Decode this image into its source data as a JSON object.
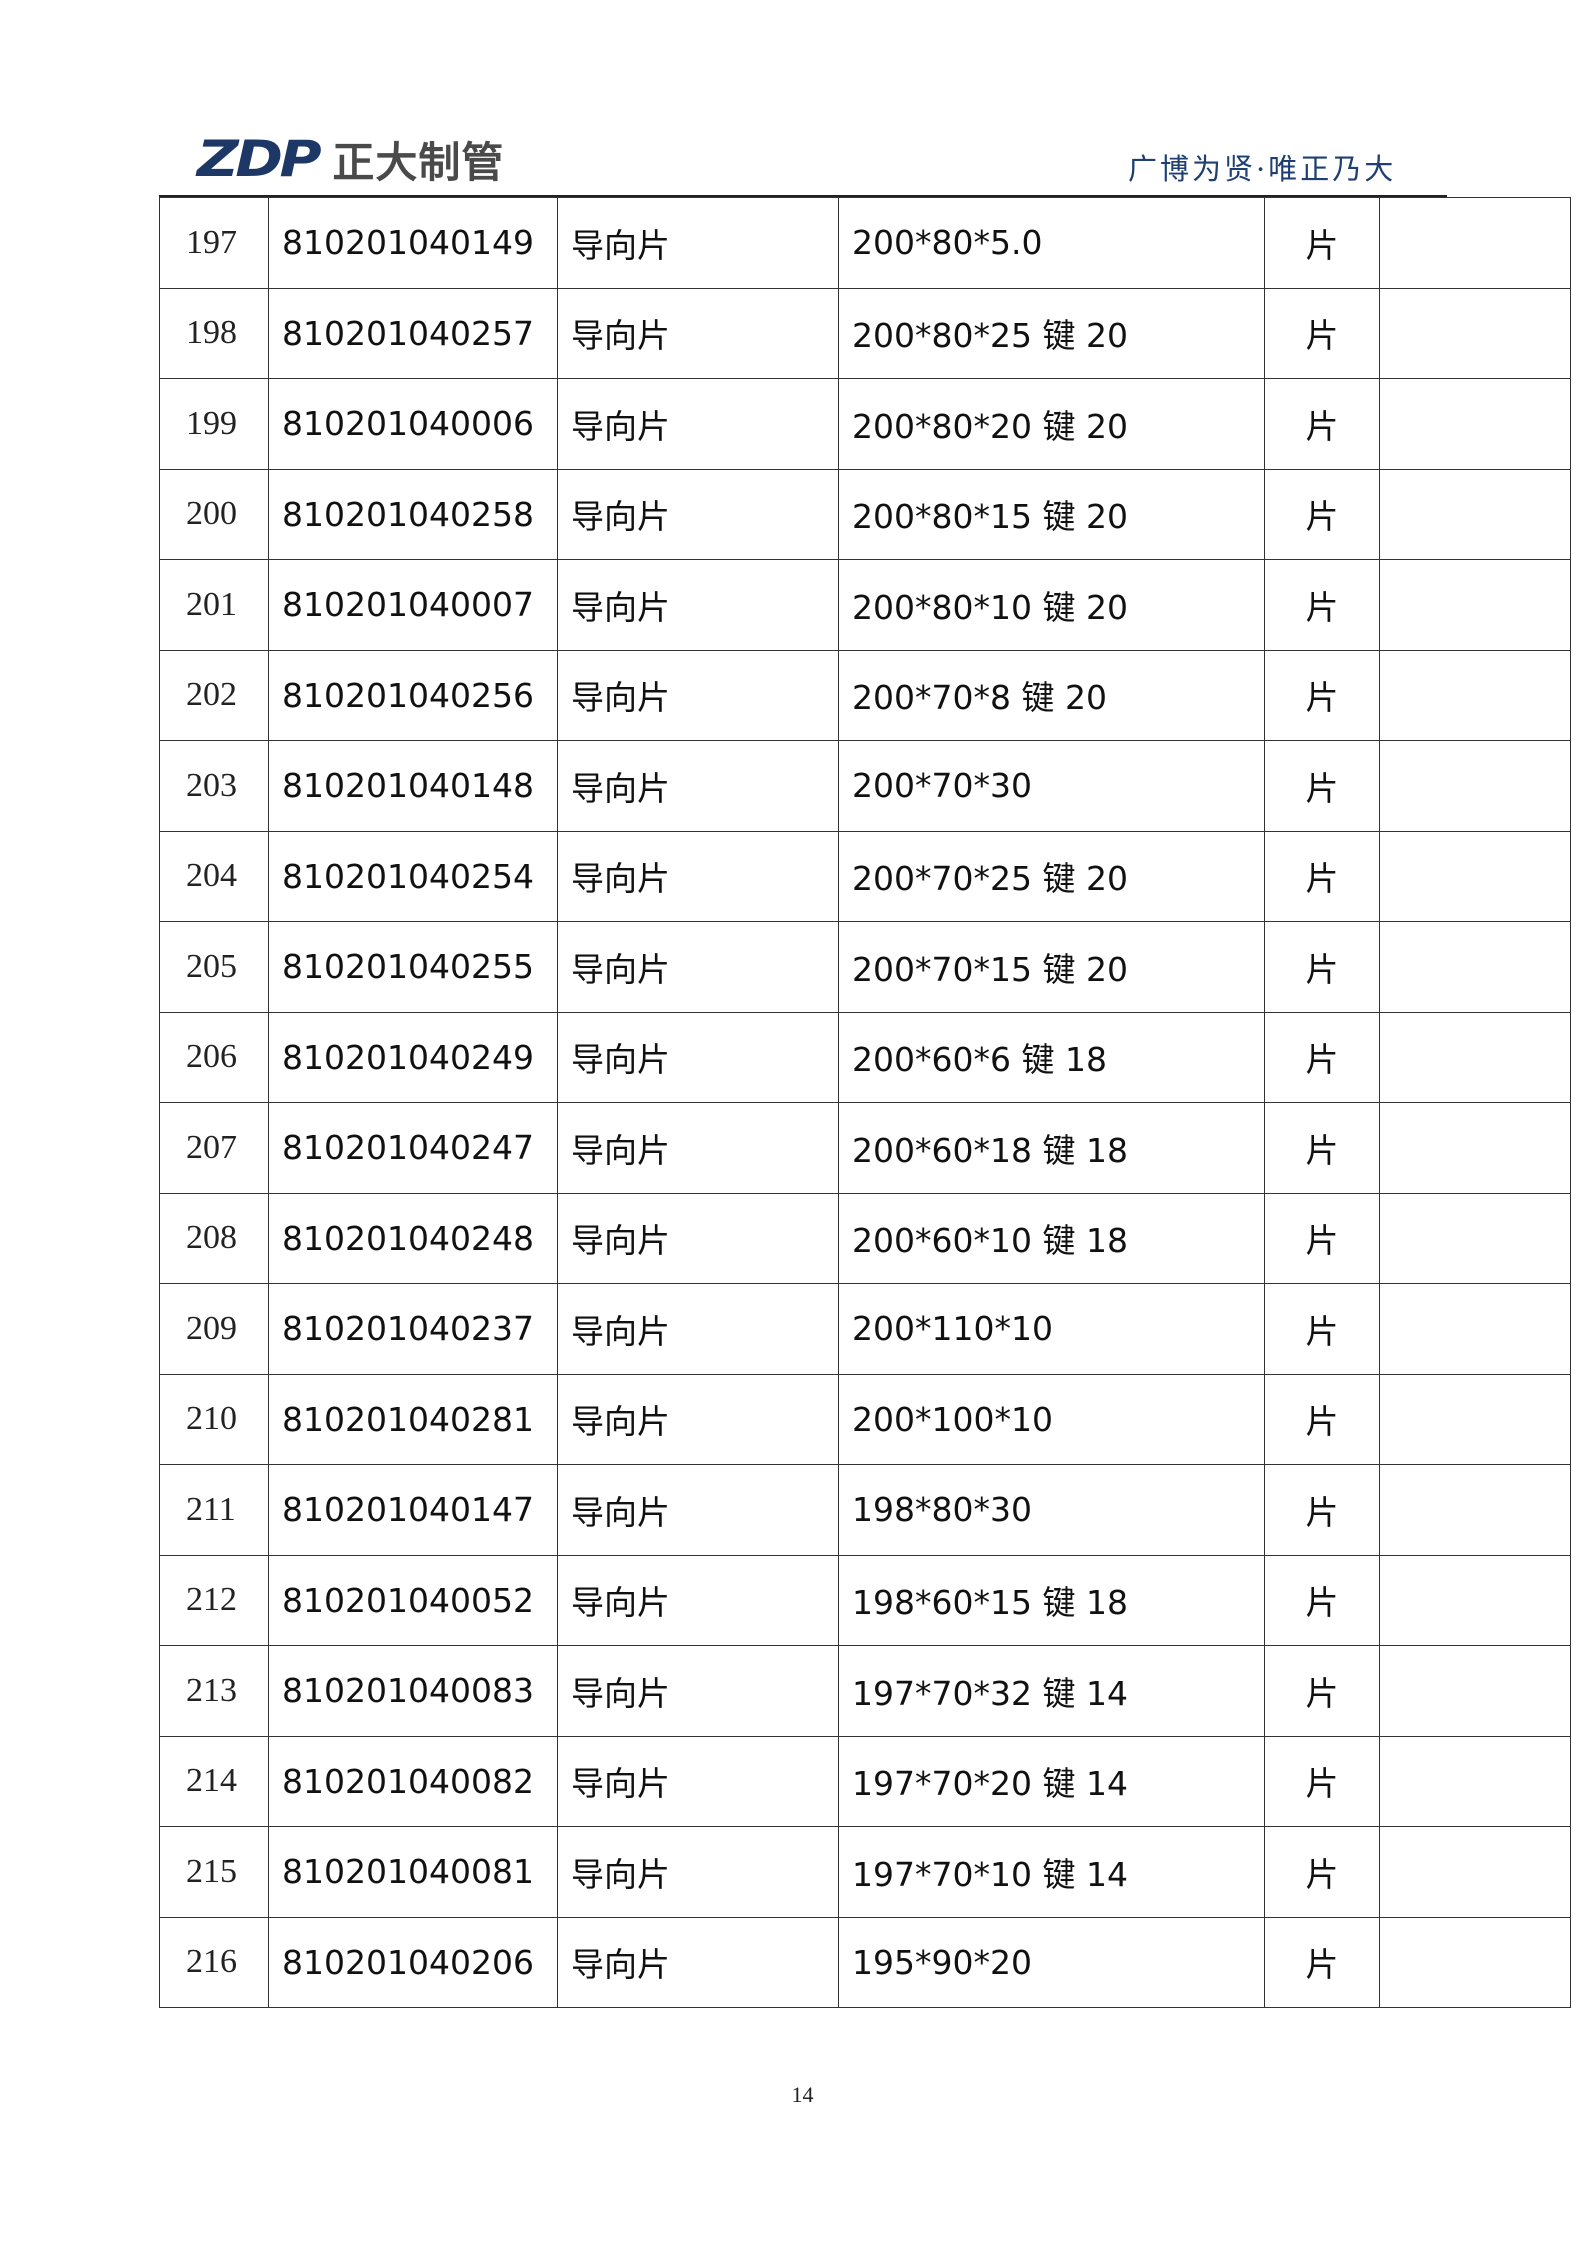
{
  "header": {
    "logo_mark": "ZDP",
    "logo_name": "正大制管",
    "slogan": "广博为贤·唯正乃大"
  },
  "rows": [
    [
      "197",
      "810201040149",
      "导向片",
      "200*80*5.0",
      "片",
      ""
    ],
    [
      "198",
      "810201040257",
      "导向片",
      "200*80*25 键 20",
      "片",
      ""
    ],
    [
      "199",
      "810201040006",
      "导向片",
      "200*80*20 键 20",
      "片",
      ""
    ],
    [
      "200",
      "810201040258",
      "导向片",
      "200*80*15 键 20",
      "片",
      ""
    ],
    [
      "201",
      "810201040007",
      "导向片",
      "200*80*10 键 20",
      "片",
      ""
    ],
    [
      "202",
      "810201040256",
      "导向片",
      "200*70*8 键 20",
      "片",
      ""
    ],
    [
      "203",
      "810201040148",
      "导向片",
      "200*70*30",
      "片",
      ""
    ],
    [
      "204",
      "810201040254",
      "导向片",
      "200*70*25 键 20",
      "片",
      ""
    ],
    [
      "205",
      "810201040255",
      "导向片",
      "200*70*15 键 20",
      "片",
      ""
    ],
    [
      "206",
      "810201040249",
      "导向片",
      "200*60*6 键 18",
      "片",
      ""
    ],
    [
      "207",
      "810201040247",
      "导向片",
      "200*60*18 键 18",
      "片",
      ""
    ],
    [
      "208",
      "810201040248",
      "导向片",
      "200*60*10 键 18",
      "片",
      ""
    ],
    [
      "209",
      "810201040237",
      "导向片",
      "200*110*10",
      "片",
      ""
    ],
    [
      "210",
      "810201040281",
      "导向片",
      "200*100*10",
      "片",
      ""
    ],
    [
      "211",
      "810201040147",
      "导向片",
      "198*80*30",
      "片",
      ""
    ],
    [
      "212",
      "810201040052",
      "导向片",
      "198*60*15 键 18",
      "片",
      ""
    ],
    [
      "213",
      "810201040083",
      "导向片",
      "197*70*32 键 14",
      "片",
      ""
    ],
    [
      "214",
      "810201040082",
      "导向片",
      "197*70*20 键 14",
      "片",
      ""
    ],
    [
      "215",
      "810201040081",
      "导向片",
      "197*70*10 键 14",
      "片",
      ""
    ],
    [
      "216",
      "810201040206",
      "导向片",
      "195*90*20",
      "片",
      ""
    ]
  ],
  "footer": {
    "page_number": "14"
  }
}
